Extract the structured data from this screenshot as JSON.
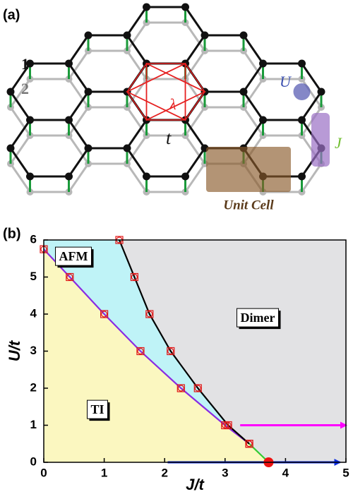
{
  "panel_a": {
    "label": "(a)",
    "layer_labels": [
      "1",
      "2"
    ],
    "U": "U",
    "J": "J",
    "lambda": "λ",
    "t": "t",
    "unit_cell": "Unit Cell"
  },
  "chart_data": {
    "type": "line",
    "panel_label": "(b)",
    "x_label": "J/t",
    "y_label": "U/t",
    "xlim": [
      0,
      5
    ],
    "ylim": [
      0,
      6
    ],
    "xticks": [
      0,
      1,
      2,
      3,
      4,
      5
    ],
    "yticks": [
      0,
      1,
      2,
      3,
      4,
      5,
      6
    ],
    "regions": [
      "AFM",
      "TI",
      "Dimer"
    ],
    "region_colors": {
      "TI": "#fbf7c0",
      "AFM": "#bff3f7",
      "Dimer": "#e2e2e4"
    },
    "series": [
      {
        "color": "#8a2be2",
        "markers": true,
        "x": [
          0,
          0.43,
          1.0,
          1.6,
          2.27,
          3.0,
          3.4
        ],
        "values": [
          5.75,
          5.0,
          4.0,
          3.0,
          2.0,
          1.0,
          0.5
        ]
      },
      {
        "color": "#000000",
        "markers": true,
        "x": [
          1.25,
          1.5,
          1.75,
          2.1,
          2.55,
          3.05,
          3.4
        ],
        "values": [
          6,
          5,
          4,
          3,
          2,
          1,
          0.5
        ]
      },
      {
        "color": "#33cc33",
        "markers": false,
        "x": [
          3.4,
          3.72
        ],
        "values": [
          0.5,
          0
        ]
      }
    ],
    "critical_point": {
      "x": 3.72,
      "value": 0,
      "color": "#ee1111"
    },
    "arrows": [
      {
        "color": "#ff00ff",
        "x": [
          3.25,
          5
        ],
        "values": [
          1,
          1
        ]
      },
      {
        "color": "#0a2be0",
        "x": [
          2.05,
          4.9
        ],
        "values": [
          0,
          0
        ]
      }
    ]
  }
}
